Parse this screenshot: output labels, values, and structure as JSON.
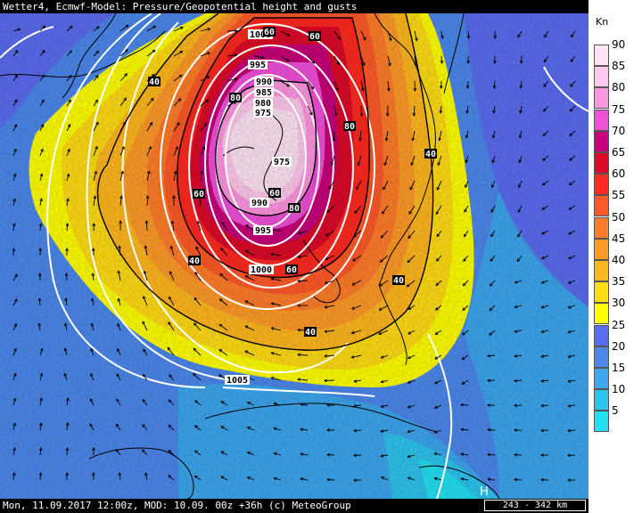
{
  "title": "Wetter4, Ecmwf-Model: Pressure/Geopotential height and gusts",
  "footer": {
    "info": "Mon, 11.09.2017 12:00z, MOD: 10.09. 00z +36h (c) MeteoGroup",
    "scale": "243 - 342 km",
    "h_marker": "H"
  },
  "legend": {
    "unit": "Kn",
    "items": [
      {
        "value": "90",
        "color": "#ffe4f4"
      },
      {
        "value": "85",
        "color": "#ffc8ec"
      },
      {
        "value": "80",
        "color": "#ff96e0"
      },
      {
        "value": "75",
        "color": "#f050d8"
      },
      {
        "value": "70",
        "color": "#c8007a"
      },
      {
        "value": "65",
        "color": "#dc0a28"
      },
      {
        "value": "60",
        "color": "#ff2a20"
      },
      {
        "value": "55",
        "color": "#ff5a28"
      },
      {
        "value": "50",
        "color": "#ff7d2a"
      },
      {
        "value": "45",
        "color": "#ff9a28"
      },
      {
        "value": "40",
        "color": "#ffb81e"
      },
      {
        "value": "35",
        "color": "#ffdc14"
      },
      {
        "value": "30",
        "color": "#ffff00"
      },
      {
        "value": "25",
        "color": "#5a6cf0"
      },
      {
        "value": "20",
        "color": "#4c88ec"
      },
      {
        "value": "15",
        "color": "#3ca6ee"
      },
      {
        "value": "10",
        "color": "#2ec4ee"
      },
      {
        "value": "5",
        "color": "#22e0f2"
      }
    ]
  },
  "map": {
    "pressure_labels": [
      "995",
      "990",
      "985",
      "980",
      "975",
      "975",
      "990",
      "995",
      "1000",
      "1005"
    ],
    "gust_labels": [
      "40",
      "40",
      "40",
      "40",
      "40",
      "60",
      "60",
      "60",
      "80",
      "80",
      "80",
      "60",
      "60"
    ],
    "top_partial_label": "1000"
  }
}
